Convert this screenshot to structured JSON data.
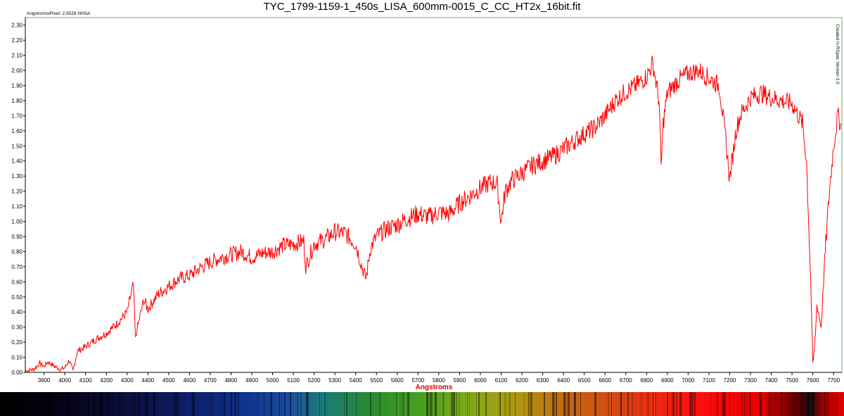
{
  "chart_data": {
    "type": "line",
    "title": "TYC_1799-1159-1_450s_LISA_600mm-0015_C_CC_HT2x_16bit.fit",
    "xlabel": "Angstroms",
    "ylabel": "",
    "scale_note": "Angstroms/Pixel: 2.9528 NHSA",
    "side_note": "Created in RSpec Version 1.9",
    "xlim": [
      3810,
      7740
    ],
    "ylim": [
      0,
      2.35
    ],
    "x_ticks": [
      3900,
      4000,
      4100,
      4200,
      4300,
      4400,
      4500,
      4600,
      4700,
      4800,
      4900,
      5000,
      5100,
      5200,
      5300,
      5400,
      5500,
      5600,
      5700,
      5800,
      5900,
      6000,
      6100,
      6200,
      6300,
      6400,
      6500,
      6600,
      6700,
      6800,
      6900,
      7000,
      7100,
      7200,
      7300,
      7400,
      7500,
      7600,
      7700
    ],
    "y_ticks": [
      "0.00",
      "0.10",
      "0.20",
      "0.30",
      "0.40",
      "0.50",
      "0.60",
      "0.70",
      "0.80",
      "0.90",
      "1.00",
      "1.10",
      "1.20",
      "1.30",
      "1.40",
      "1.50",
      "1.60",
      "1.70",
      "1.80",
      "1.90",
      "2.00",
      "2.10",
      "2.20",
      "2.30"
    ],
    "grid": false,
    "series": [
      {
        "color": "#ff0000",
        "x": [
          3810,
          3850,
          3880,
          3900,
          3920,
          3950,
          3980,
          4000,
          4020,
          4040,
          4060,
          4100,
          4150,
          4200,
          4250,
          4300,
          4330,
          4340,
          4350,
          4380,
          4400,
          4450,
          4500,
          4550,
          4600,
          4650,
          4700,
          4750,
          4800,
          4850,
          4900,
          4950,
          5000,
          5050,
          5100,
          5150,
          5160,
          5200,
          5250,
          5300,
          5350,
          5400,
          5430,
          5450,
          5470,
          5500,
          5550,
          5600,
          5650,
          5700,
          5750,
          5800,
          5850,
          5900,
          5950,
          6000,
          6050,
          6080,
          6100,
          6120,
          6150,
          6200,
          6250,
          6300,
          6350,
          6400,
          6450,
          6500,
          6550,
          6600,
          6650,
          6700,
          6750,
          6800,
          6830,
          6860,
          6870,
          6880,
          6900,
          6950,
          7000,
          7050,
          7100,
          7150,
          7180,
          7200,
          7230,
          7250,
          7300,
          7350,
          7400,
          7450,
          7500,
          7550,
          7570,
          7590,
          7600,
          7610,
          7620,
          7640,
          7660,
          7680,
          7700,
          7720,
          7735
        ],
        "y": [
          0.01,
          0.02,
          0.06,
          0.04,
          0.07,
          0.04,
          0.02,
          0.03,
          0.08,
          0.01,
          0.14,
          0.17,
          0.22,
          0.26,
          0.32,
          0.4,
          0.58,
          0.22,
          0.3,
          0.48,
          0.42,
          0.52,
          0.57,
          0.62,
          0.64,
          0.69,
          0.73,
          0.76,
          0.78,
          0.8,
          0.76,
          0.79,
          0.8,
          0.84,
          0.85,
          0.87,
          0.7,
          0.85,
          0.88,
          0.93,
          0.92,
          0.85,
          0.7,
          0.62,
          0.82,
          0.9,
          0.95,
          0.98,
          1.02,
          1.05,
          1.03,
          1.06,
          1.05,
          1.12,
          1.17,
          1.22,
          1.26,
          1.25,
          1.0,
          1.2,
          1.27,
          1.32,
          1.37,
          1.4,
          1.43,
          1.48,
          1.53,
          1.58,
          1.62,
          1.7,
          1.8,
          1.86,
          1.9,
          1.96,
          2.05,
          1.8,
          1.36,
          1.65,
          1.85,
          1.93,
          1.98,
          2.0,
          1.95,
          1.9,
          1.55,
          1.28,
          1.6,
          1.7,
          1.82,
          1.85,
          1.82,
          1.8,
          1.78,
          1.65,
          1.4,
          0.6,
          0.05,
          0.2,
          0.45,
          0.3,
          0.8,
          1.2,
          1.5,
          1.7,
          1.65
        ]
      }
    ]
  },
  "colors": {
    "line": "#ff0000",
    "frame": "#5fbf5f",
    "axis_label": "#e00000"
  }
}
